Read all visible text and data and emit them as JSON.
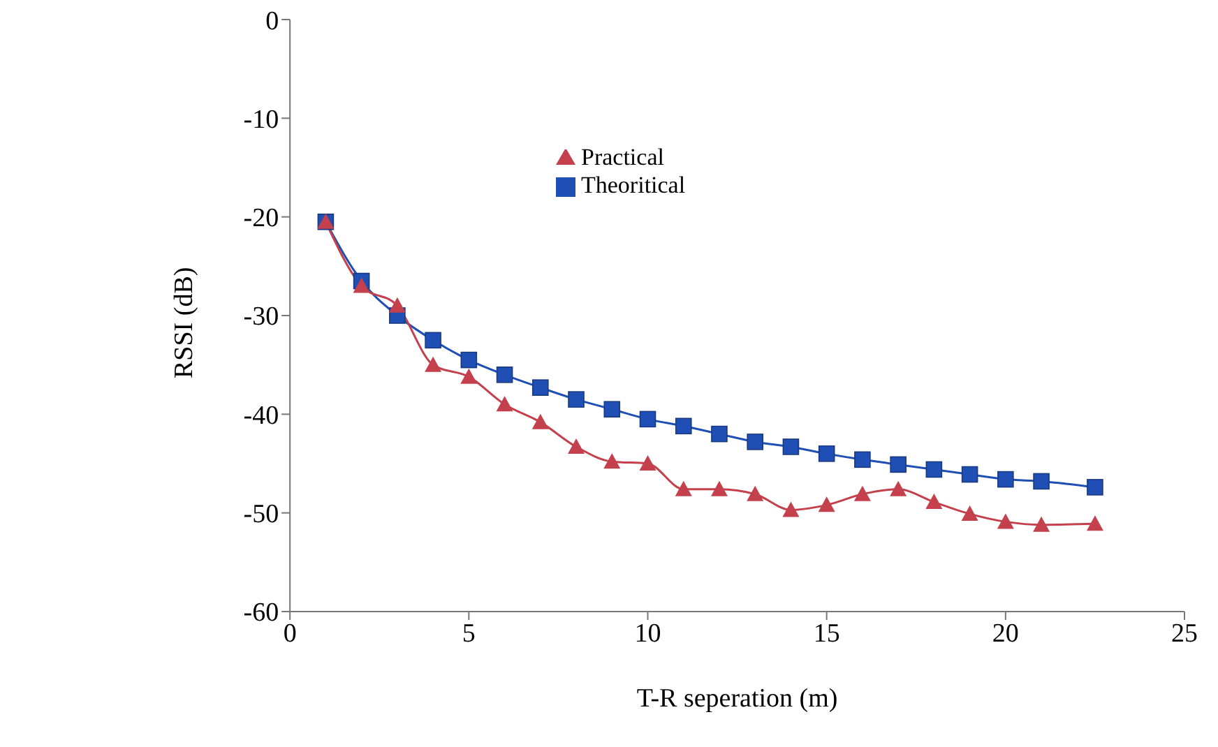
{
  "chart_data": {
    "type": "line",
    "xlabel": "T-R seperation (m)",
    "ylabel": "RSSI (dB)",
    "x": [
      1,
      2,
      3,
      4,
      5,
      6,
      7,
      8,
      9,
      10,
      11,
      12,
      13,
      14,
      15,
      16,
      17,
      18,
      19,
      20,
      21,
      22.5
    ],
    "series": [
      {
        "name": "Practical",
        "color": "#c4404c",
        "marker": "triangle",
        "values": [
          -20.5,
          -27,
          -29,
          -35,
          -36.2,
          -39,
          -40.8,
          -43.3,
          -44.8,
          -45,
          -47.6,
          -47.6,
          -48.1,
          -49.7,
          -49.2,
          -48.1,
          -47.6,
          -48.9,
          -50.1,
          -50.9,
          -51.2,
          -51.1
        ]
      },
      {
        "name": "Theoritical",
        "color": "#1f4fb4",
        "marker": "square",
        "values": [
          -20.5,
          -26.5,
          -30,
          -32.5,
          -34.5,
          -36,
          -37.3,
          -38.5,
          -39.5,
          -40.5,
          -41.2,
          -42,
          -42.8,
          -43.3,
          -44,
          -44.6,
          -45.1,
          -45.6,
          -46.1,
          -46.6,
          -46.8,
          -47.4
        ]
      }
    ],
    "xlim": [
      0,
      25
    ],
    "xticks": [
      0,
      5,
      10,
      15,
      20,
      25
    ],
    "ylim": [
      -60,
      0
    ],
    "yticks": [
      -60,
      -50,
      -40,
      -30,
      -20,
      -10,
      0
    ],
    "grid": false,
    "legend": "top",
    "line_style": "solid"
  }
}
